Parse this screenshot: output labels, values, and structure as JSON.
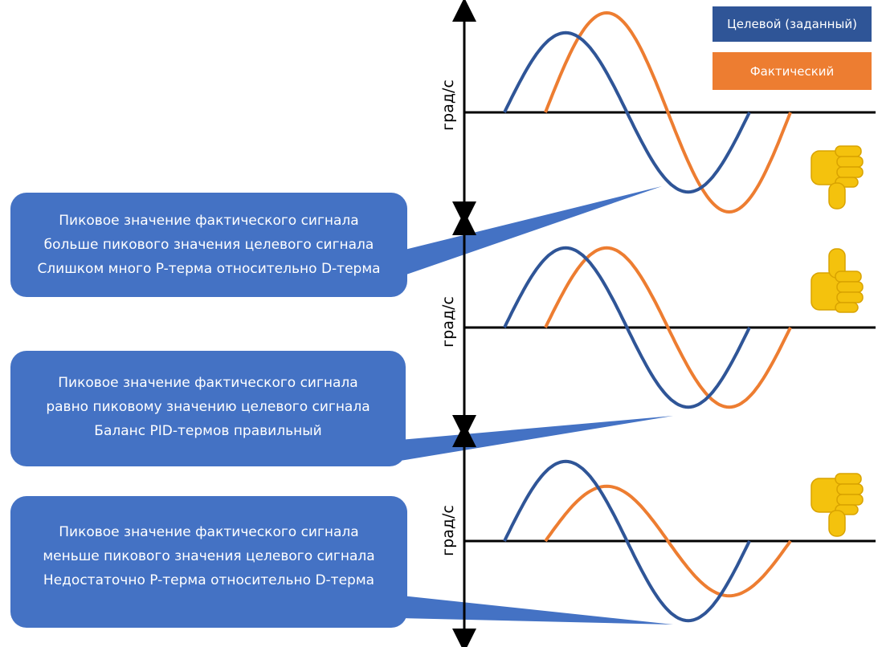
{
  "legend": {
    "target_label": "Целевой (заданный)",
    "actual_label": "Фактический"
  },
  "colors": {
    "target": "#2f5597",
    "actual": "#ed7d31",
    "callout": "#4472c4",
    "thumb": "#f4c20d",
    "axis": "#000000"
  },
  "axis_label": "град/с",
  "panels": [
    {
      "verdict": "thumb-down",
      "target_amplitude": 0.8,
      "actual_amplitude": 1.0,
      "callout_lines": [
        "Пиковое значение фактического сигнала",
        "больше пикового значения целевого сигнала",
        "Слишком много P-терма относительно D-терма"
      ]
    },
    {
      "verdict": "thumb-up",
      "target_amplitude": 0.8,
      "actual_amplitude": 0.8,
      "callout_lines": [
        "Пиковое значение фактического сигнала",
        "равно пиковому значению целевого сигнала",
        "Баланс PID-термов правильный"
      ]
    },
    {
      "verdict": "thumb-down",
      "target_amplitude": 0.8,
      "actual_amplitude": 0.55,
      "callout_lines": [
        "Пиковое значение фактического сигнала",
        "меньше пикового значения целевого сигнала",
        "Недостаточно P-терма относительно D-терма"
      ]
    }
  ]
}
